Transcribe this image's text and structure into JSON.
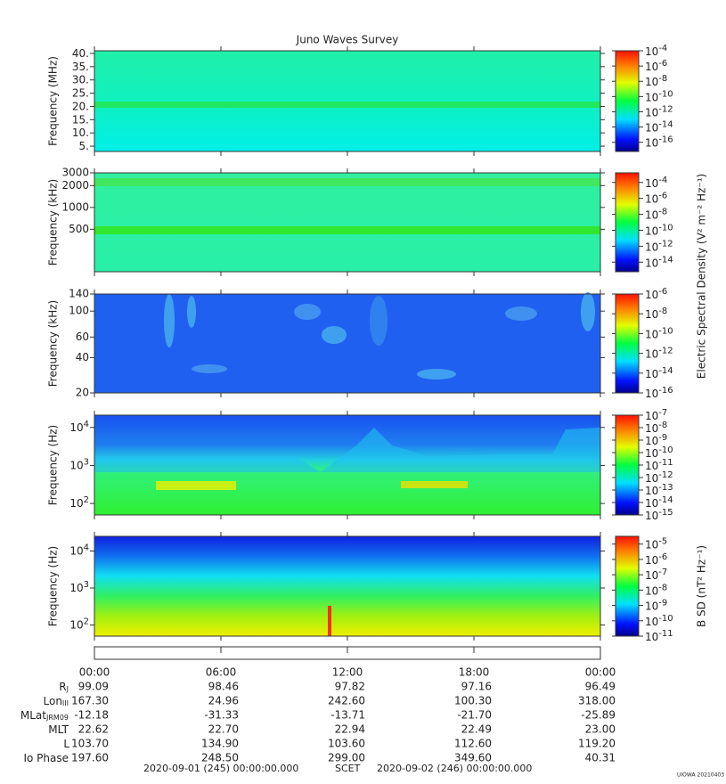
{
  "title": "Juno Waves Survey",
  "xlim": [
    0,
    24
  ],
  "xticks": [
    {
      "value": 0,
      "label": "00:00"
    },
    {
      "value": 6,
      "label": "06:00"
    },
    {
      "value": 12,
      "label": "12:00"
    },
    {
      "value": 18,
      "label": "18:00"
    },
    {
      "value": 24,
      "label": "00:00"
    }
  ],
  "panels": [
    {
      "ylabel": "Frequency (MHz)",
      "log": false,
      "ylim": [
        3,
        41
      ],
      "yticks": [
        {
          "value": 40,
          "label": "40."
        },
        {
          "value": 35,
          "label": "35."
        },
        {
          "value": 30,
          "label": "30."
        },
        {
          "value": 25,
          "label": "25."
        },
        {
          "value": 20,
          "label": "20."
        },
        {
          "value": 15,
          "label": "15."
        },
        {
          "value": 10,
          "label": "10."
        },
        {
          "value": 5,
          "label": "5."
        }
      ],
      "clim": [
        6.3e-18,
        0.0001
      ],
      "cticks": [
        {
          "value": 0.0001,
          "label": "10",
          "sup": "-4"
        },
        {
          "value": 1e-06,
          "label": "10",
          "sup": "-6"
        },
        {
          "value": 1e-08,
          "label": "10",
          "sup": "-8"
        },
        {
          "value": 1e-10,
          "label": "10",
          "sup": "-10"
        },
        {
          "value": 1e-12,
          "label": "10",
          "sup": "-12"
        },
        {
          "value": 1e-14,
          "label": "10",
          "sup": "-14"
        },
        {
          "value": 1e-16,
          "label": "10",
          "sup": "-16"
        }
      ]
    },
    {
      "ylabel": "Frequency (kHz)",
      "log": true,
      "ylim": [
        130,
        3000
      ],
      "yticks": [
        3000,
        2000,
        1000,
        500
      ],
      "clim": [
        6.3e-16,
        0.0016
      ],
      "cticks": [
        {
          "value": 0.0001,
          "label": "10",
          "sup": "-4"
        },
        {
          "value": 1e-06,
          "label": "10",
          "sup": "-6"
        },
        {
          "value": 1e-08,
          "label": "10",
          "sup": "-8"
        },
        {
          "value": 1e-10,
          "label": "10",
          "sup": "-10"
        },
        {
          "value": 1e-12,
          "label": "10",
          "sup": "-12"
        },
        {
          "value": 1e-14,
          "label": "10",
          "sup": "-14"
        }
      ]
    },
    {
      "ylabel": "Frequency (kHz)",
      "log": true,
      "ylim": [
        20,
        140
      ],
      "yticks": [
        140,
        100,
        60,
        40,
        20
      ],
      "clim": [
        1e-16,
        1e-06
      ],
      "cticks": [
        {
          "value": 1e-06,
          "label": "10",
          "sup": "-6"
        },
        {
          "value": 1e-08,
          "label": "10",
          "sup": "-8"
        },
        {
          "value": 1e-10,
          "label": "10",
          "sup": "-10"
        },
        {
          "value": 1e-12,
          "label": "10",
          "sup": "-12"
        },
        {
          "value": 1e-14,
          "label": "10",
          "sup": "-14"
        },
        {
          "value": 1e-16,
          "label": "10",
          "sup": "-16"
        }
      ]
    },
    {
      "ylabel": "Frequency (Hz)",
      "log": true,
      "ylim": [
        50,
        21000
      ],
      "yticks": [
        {
          "value": 10000,
          "label": "10",
          "sup": "4"
        },
        {
          "value": 1000,
          "label": "10",
          "sup": "3"
        },
        {
          "value": 100,
          "label": "10",
          "sup": "2"
        }
      ],
      "clim": [
        1e-15,
        1e-07
      ],
      "cticks": [
        {
          "value": 1e-07,
          "label": "10",
          "sup": "-7"
        },
        {
          "value": 1e-08,
          "label": "10",
          "sup": "-8"
        },
        {
          "value": 1e-09,
          "label": "10",
          "sup": "-9"
        },
        {
          "value": 1e-10,
          "label": "10",
          "sup": "-10"
        },
        {
          "value": 1e-11,
          "label": "10",
          "sup": "-11"
        },
        {
          "value": 1e-12,
          "label": "10",
          "sup": "-12"
        },
        {
          "value": 1e-13,
          "label": "10",
          "sup": "-13"
        },
        {
          "value": 1e-14,
          "label": "10",
          "sup": "-14"
        },
        {
          "value": 1e-15,
          "label": "10",
          "sup": "-15"
        }
      ]
    },
    {
      "ylabel": "Frequency (Hz)",
      "log": true,
      "ylim": [
        50,
        25000
      ],
      "yticks": [
        {
          "value": 10000,
          "label": "10",
          "sup": "4"
        },
        {
          "value": 1000,
          "label": "10",
          "sup": "3"
        },
        {
          "value": 100,
          "label": "10",
          "sup": "2"
        }
      ],
      "clim": [
        1e-11,
        3.2e-05
      ],
      "cticks": [
        {
          "value": 1e-05,
          "label": "10",
          "sup": "-5"
        },
        {
          "value": 1e-06,
          "label": "10",
          "sup": "-6"
        },
        {
          "value": 1e-07,
          "label": "10",
          "sup": "-7"
        },
        {
          "value": 1e-08,
          "label": "10",
          "sup": "-8"
        },
        {
          "value": 1e-09,
          "label": "10",
          "sup": "-9"
        },
        {
          "value": 1e-10,
          "label": "10",
          "sup": "-10"
        },
        {
          "value": 1e-11,
          "label": "10",
          "sup": "-11"
        }
      ]
    }
  ],
  "colorbar_labels": [
    "Electric Spectral Density (V² m⁻² Hz⁻¹)",
    "B SD (nT² Hz⁻¹)"
  ],
  "ephemeris": [
    {
      "label": "R",
      "sub": "J",
      "values": [
        "99.09",
        "98.46",
        "97.82",
        "97.16",
        "96.49"
      ]
    },
    {
      "label": "Lon",
      "sub": "III",
      "values": [
        "167.30",
        "24.96",
        "242.60",
        "100.30",
        "318.00"
      ]
    },
    {
      "label": "MLat",
      "sub": "JRM09",
      "values": [
        "-12.18",
        "-31.33",
        "-13.71",
        "-21.70",
        "-25.89"
      ]
    },
    {
      "label": "MLT",
      "values": [
        "22.62",
        "22.70",
        "22.94",
        "22.49",
        "23.00"
      ]
    },
    {
      "label": "L",
      "values": [
        "103.70",
        "134.90",
        "103.60",
        "112.60",
        "119.20"
      ]
    },
    {
      "label": "Io Phase",
      "values": [
        "197.60",
        "248.50",
        "299.00",
        "349.60",
        "40.31"
      ]
    }
  ],
  "footer": {
    "start": "2020-09-01 (245) 00:00:00.000",
    "scet": "SCET",
    "end": "2020-09-02 (246) 00:00:00.000",
    "stamp": "UIOWA 20210403"
  }
}
